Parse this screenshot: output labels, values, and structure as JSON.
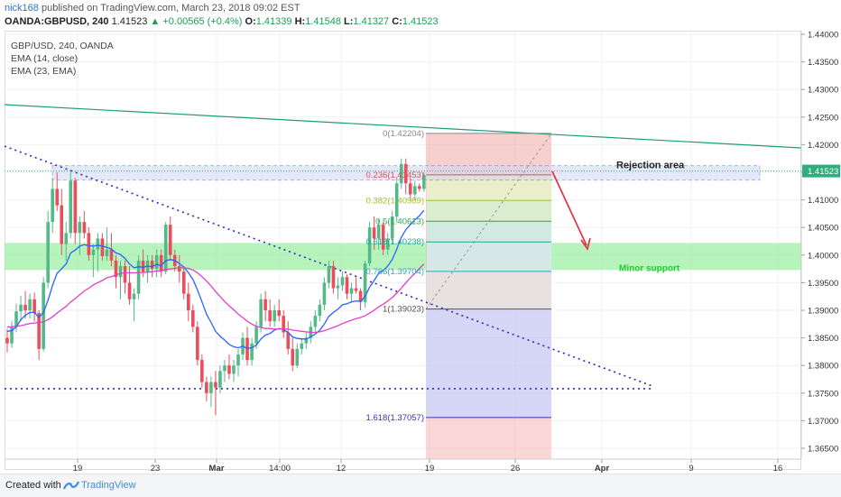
{
  "header": {
    "author": "nick168",
    "published_text": "published on TradingView.com, March 23, 2018 09:02 EST",
    "symbol": "OANDA:GBPUSD, 240",
    "last": "1.41523",
    "change": "+0.00565 (+0.4%)",
    "ohlc": [
      {
        "label": "O:",
        "value": "1.41339"
      },
      {
        "label": "H:",
        "value": "1.41548"
      },
      {
        "label": "L:",
        "value": "1.41327"
      },
      {
        "label": "C:",
        "value": "1.41523"
      }
    ]
  },
  "legend": [
    "GBP/USD, 240, OANDA",
    "EMA (14, close)",
    "EMA (23, EMA)"
  ],
  "footer": {
    "created": "Created with",
    "brand": "TradingView"
  },
  "colors": {
    "up": "#53b987",
    "down": "#eb4d5c",
    "ema14": "#2962ff",
    "ema23": "#e040c8",
    "trendline": "#1d9e77",
    "dotted": "#2a2abf",
    "green_zone": "#9ef0a6",
    "fib_red": "#f4b6b6",
    "fib_blue": "#c8c8f4",
    "arrow": "#e8283c"
  },
  "chart_data": {
    "type": "candlestick",
    "title": "GBP/USD, 240, OANDA",
    "price_axis_ticks": [
      "1.44000",
      "1.43500",
      "1.43000",
      "1.42500",
      "1.42000",
      "1.41500",
      "1.41000",
      "1.40500",
      "1.40000",
      "1.39500",
      "1.39000",
      "1.38500",
      "1.38000",
      "1.37500",
      "1.37000",
      "1.36500"
    ],
    "ylim": [
      1.3635,
      1.4412
    ],
    "last_price": 1.41523,
    "time_axis_ticks": [
      "19",
      "23",
      "Mar",
      "14:00",
      "12",
      "19",
      "26",
      "Apr",
      "9",
      "16"
    ],
    "candles": [
      [
        1.385,
        1.3866,
        1.3824,
        1.384
      ],
      [
        1.384,
        1.388,
        1.3832,
        1.387
      ],
      [
        1.387,
        1.3912,
        1.386,
        1.3898
      ],
      [
        1.3898,
        1.3926,
        1.388,
        1.391
      ],
      [
        1.391,
        1.3935,
        1.3885,
        1.39
      ],
      [
        1.39,
        1.393,
        1.3885,
        1.392
      ],
      [
        1.392,
        1.3932,
        1.388,
        1.3895
      ],
      [
        1.3895,
        1.39,
        1.381,
        1.383
      ],
      [
        1.383,
        1.396,
        1.3825,
        1.395
      ],
      [
        1.395,
        1.408,
        1.394,
        1.406
      ],
      [
        1.406,
        1.414,
        1.404,
        1.412
      ],
      [
        1.412,
        1.415,
        1.408,
        1.409
      ],
      [
        1.409,
        1.412,
        1.4,
        1.402
      ],
      [
        1.402,
        1.406,
        1.399,
        1.404
      ],
      [
        1.404,
        1.415,
        1.403,
        1.4135
      ],
      [
        1.4135,
        1.414,
        1.402,
        1.404
      ],
      [
        1.404,
        1.407,
        1.4,
        1.406
      ],
      [
        1.406,
        1.408,
        1.403,
        1.404
      ],
      [
        1.404,
        1.405,
        1.399,
        1.4
      ],
      [
        1.4,
        1.402,
        1.396,
        1.401
      ],
      [
        1.401,
        1.404,
        1.397,
        1.403
      ],
      [
        1.403,
        1.404,
        1.399,
        1.3998
      ],
      [
        1.3998,
        1.405,
        1.399,
        1.401
      ],
      [
        1.401,
        1.404,
        1.398,
        1.399
      ],
      [
        1.399,
        1.4,
        1.394,
        1.396
      ],
      [
        1.396,
        1.399,
        1.392,
        1.398
      ],
      [
        1.398,
        1.399,
        1.393,
        1.395
      ],
      [
        1.395,
        1.398,
        1.391,
        1.392
      ],
      [
        1.392,
        1.394,
        1.388,
        1.393
      ],
      [
        1.393,
        1.4,
        1.392,
        1.399
      ],
      [
        1.399,
        1.401,
        1.396,
        1.397
      ],
      [
        1.397,
        1.4,
        1.395,
        1.399
      ],
      [
        1.399,
        1.4,
        1.396,
        1.3975
      ],
      [
        1.3975,
        1.401,
        1.396,
        1.4
      ],
      [
        1.4,
        1.401,
        1.396,
        1.397
      ],
      [
        1.397,
        1.406,
        1.3965,
        1.4055
      ],
      [
        1.4055,
        1.407,
        1.399,
        1.4
      ],
      [
        1.4,
        1.401,
        1.397,
        1.398
      ],
      [
        1.398,
        1.4,
        1.395,
        1.397
      ],
      [
        1.397,
        1.398,
        1.392,
        1.393
      ],
      [
        1.393,
        1.395,
        1.388,
        1.39
      ],
      [
        1.39,
        1.391,
        1.386,
        1.387
      ],
      [
        1.387,
        1.388,
        1.38,
        1.381
      ],
      [
        1.381,
        1.382,
        1.376,
        1.377
      ],
      [
        1.377,
        1.378,
        1.3735,
        1.375
      ],
      [
        1.375,
        1.378,
        1.3725,
        1.377
      ],
      [
        1.377,
        1.379,
        1.371,
        1.376
      ],
      [
        1.376,
        1.38,
        1.375,
        1.379
      ],
      [
        1.379,
        1.381,
        1.377,
        1.38
      ],
      [
        1.38,
        1.382,
        1.3775,
        1.3785
      ],
      [
        1.3785,
        1.381,
        1.377,
        1.38
      ],
      [
        1.38,
        1.383,
        1.378,
        1.382
      ],
      [
        1.382,
        1.386,
        1.381,
        1.385
      ],
      [
        1.385,
        1.387,
        1.38,
        1.381
      ],
      [
        1.381,
        1.385,
        1.38,
        1.384
      ],
      [
        1.384,
        1.388,
        1.383,
        1.387
      ],
      [
        1.387,
        1.393,
        1.386,
        1.392
      ],
      [
        1.392,
        1.3935,
        1.388,
        1.39
      ],
      [
        1.39,
        1.392,
        1.387,
        1.388
      ],
      [
        1.388,
        1.391,
        1.387,
        1.39
      ],
      [
        1.39,
        1.392,
        1.388,
        1.389
      ],
      [
        1.389,
        1.39,
        1.385,
        1.386
      ],
      [
        1.386,
        1.388,
        1.382,
        1.383
      ],
      [
        1.383,
        1.385,
        1.379,
        1.38
      ],
      [
        1.38,
        1.384,
        1.3795,
        1.383
      ],
      [
        1.383,
        1.385,
        1.382,
        1.384
      ],
      [
        1.384,
        1.386,
        1.383,
        1.385
      ],
      [
        1.385,
        1.388,
        1.384,
        1.387
      ],
      [
        1.387,
        1.39,
        1.386,
        1.389
      ],
      [
        1.389,
        1.392,
        1.388,
        1.391
      ],
      [
        1.391,
        1.396,
        1.39,
        1.395
      ],
      [
        1.395,
        1.399,
        1.394,
        1.398
      ],
      [
        1.398,
        1.399,
        1.393,
        1.394
      ],
      [
        1.394,
        1.396,
        1.392,
        1.3945
      ],
      [
        1.3945,
        1.397,
        1.3935,
        1.396
      ],
      [
        1.396,
        1.3965,
        1.392,
        1.393
      ],
      [
        1.393,
        1.395,
        1.3915,
        1.394
      ],
      [
        1.394,
        1.396,
        1.393,
        1.3935
      ],
      [
        1.3935,
        1.394,
        1.39,
        1.3915
      ],
      [
        1.3915,
        1.399,
        1.3905,
        1.3985
      ],
      [
        1.3985,
        1.406,
        1.398,
        1.405
      ],
      [
        1.405,
        1.407,
        1.401,
        1.403
      ],
      [
        1.403,
        1.4065,
        1.401,
        1.4055
      ],
      [
        1.4055,
        1.406,
        1.4,
        1.401
      ],
      [
        1.401,
        1.404,
        1.4,
        1.403
      ],
      [
        1.403,
        1.408,
        1.402,
        1.407
      ],
      [
        1.407,
        1.414,
        1.406,
        1.413
      ],
      [
        1.413,
        1.4175,
        1.412,
        1.4165
      ],
      [
        1.4165,
        1.4175,
        1.411,
        1.413
      ],
      [
        1.413,
        1.414,
        1.41,
        1.411
      ],
      [
        1.411,
        1.4135,
        1.41,
        1.4125
      ],
      [
        1.4125,
        1.413,
        1.4115,
        1.412
      ],
      [
        1.412,
        1.415,
        1.4115,
        1.4145
      ]
    ],
    "series": [
      {
        "name": "EMA (14, close)",
        "values": [
          1.3862,
          1.3863,
          1.387,
          1.3883,
          1.3891,
          1.3896,
          1.3896,
          1.3887,
          1.3896,
          1.3918,
          1.3945,
          1.3967,
          1.3975,
          1.3984,
          1.4004,
          1.4009,
          1.4016,
          1.4019,
          1.4017,
          1.4016,
          1.4018,
          1.4016,
          1.4014,
          1.4011,
          1.4004,
          1.4001,
          1.3994,
          1.3984,
          1.3977,
          1.3979,
          1.3978,
          1.398,
          1.3979,
          1.3983,
          1.3981,
          1.399,
          1.3992,
          1.399,
          1.3985,
          1.3978,
          1.3968,
          1.3956,
          1.3937,
          1.3915,
          1.3893,
          1.3878,
          1.3862,
          1.3853,
          1.3846,
          1.3838,
          1.3834,
          1.3832,
          1.3835,
          1.3831,
          1.3832,
          1.3837,
          1.3848,
          1.3855,
          1.3858,
          1.3864,
          1.3867,
          1.3865,
          1.386,
          1.3852,
          1.3849,
          1.3848,
          1.3848,
          1.3852,
          1.3857,
          1.3864,
          1.3875,
          1.3889,
          1.3896,
          1.3902,
          1.391,
          1.3912,
          1.3915,
          1.3917,
          1.3916,
          1.3925,
          1.3942,
          1.3954,
          1.3967,
          1.3972,
          1.398,
          1.3992,
          1.4011,
          1.4032,
          1.4046,
          1.4055,
          1.4064,
          1.4071,
          1.4081
        ]
      },
      {
        "name": "EMA (23, EMA)",
        "values": [
          1.387,
          1.387,
          1.3871,
          1.3872,
          1.3874,
          1.3876,
          1.3877,
          1.3878,
          1.3879,
          1.3883,
          1.3888,
          1.3895,
          1.3901,
          1.3907,
          1.3915,
          1.3921,
          1.3928,
          1.3935,
          1.394,
          1.3946,
          1.395,
          1.3954,
          1.3959,
          1.3961,
          1.3964,
          1.3967,
          1.3968,
          1.3968,
          1.3968,
          1.3968,
          1.3969,
          1.3969,
          1.397,
          1.3971,
          1.3972,
          1.3974,
          1.3975,
          1.3976,
          1.3977,
          1.3977,
          1.3976,
          1.3973,
          1.3968,
          1.3961,
          1.3953,
          1.3944,
          1.3934,
          1.3925,
          1.3916,
          1.3908,
          1.3901,
          1.3893,
          1.3887,
          1.388,
          1.3875,
          1.3871,
          1.3869,
          1.3867,
          1.3867,
          1.3866,
          1.3866,
          1.3866,
          1.3866,
          1.3864,
          1.3863,
          1.3862,
          1.3861,
          1.386,
          1.386,
          1.3861,
          1.3863,
          1.3866,
          1.3869,
          1.3872,
          1.3876,
          1.3879,
          1.3882,
          1.3885,
          1.3887,
          1.389,
          1.3895,
          1.39,
          1.3906,
          1.3911,
          1.3917,
          1.3923,
          1.3931,
          1.394,
          1.395,
          1.3959,
          1.3967,
          1.3976,
          1.3984
        ]
      }
    ],
    "fibonacci": [
      {
        "label": "0(1.42204)",
        "level": 1.42204
      },
      {
        "label": "0.236(1.41453)",
        "level": 1.41453
      },
      {
        "label": "0.382(1.40989)",
        "level": 1.40989
      },
      {
        "label": "0.5(1.40613)",
        "level": 1.40613
      },
      {
        "label": "0.618(1.40238)",
        "level": 1.40238
      },
      {
        "label": "0.786(1.39704)",
        "level": 1.39704
      },
      {
        "label": "1(1.39023)",
        "level": 1.39023
      },
      {
        "label": "1.618(1.37057)",
        "level": 1.37057
      }
    ],
    "annotations": {
      "rejection": {
        "label": "Rejection area",
        "top": 1.4162,
        "bottom": 1.4136
      },
      "support": {
        "label": "Minor support",
        "top": 1.4022,
        "bottom": 1.3973
      },
      "horizontal_support": 1.3758
    }
  }
}
